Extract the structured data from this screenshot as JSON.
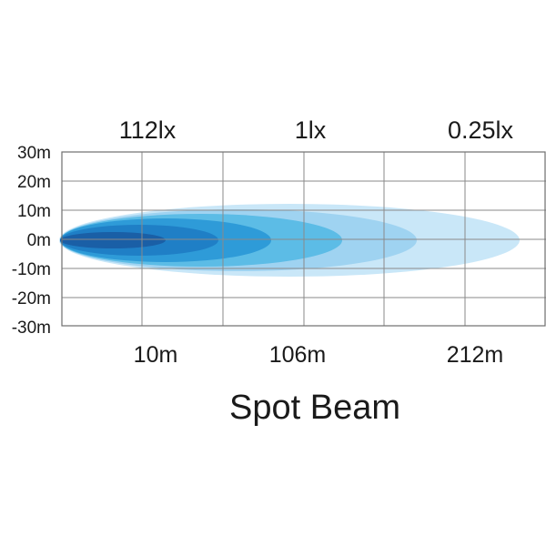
{
  "title": "Spot Beam",
  "lux_labels": [
    "112lx",
    "1lx",
    "0.25lx"
  ],
  "distance_labels": [
    "10m",
    "106m",
    "212m"
  ],
  "width_labels": [
    "30m",
    "20m",
    "10m",
    "0m",
    "-10m",
    "-20m",
    "-30m"
  ],
  "colors": {
    "zone_1": "#1a5fa6",
    "zone_2": "#1f7fc6",
    "zone_3": "#2e9bd8",
    "zone_4": "#5cbce6",
    "zone_5": "#9fd3f1",
    "zone_6": "#c9e7f8",
    "grid": "#8a8a8a",
    "text": "#1a1a1a"
  }
}
